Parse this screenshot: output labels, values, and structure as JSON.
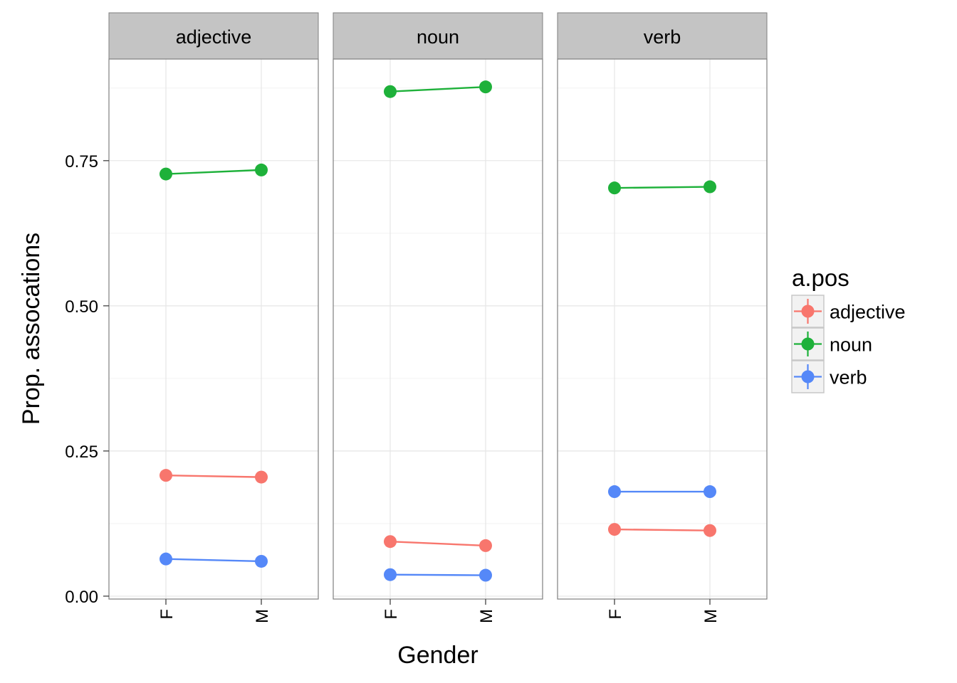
{
  "chart_data": {
    "type": "line",
    "facets": [
      "adjective",
      "noun",
      "verb"
    ],
    "x": [
      "F",
      "M"
    ],
    "xlabel": "Gender",
    "ylabel": "Prop. assocations",
    "ylim": [
      -0.005,
      0.925
    ],
    "yticks": [
      0.0,
      0.25,
      0.5,
      0.75
    ],
    "ytick_labels": [
      "0.00",
      "0.25",
      "0.50",
      "0.75"
    ],
    "grid": true,
    "legend": {
      "title": "a.pos",
      "position": "right",
      "entries": [
        "adjective",
        "noun",
        "verb"
      ]
    },
    "series": [
      {
        "name": "adjective",
        "color": "#F8766D",
        "panels": {
          "adjective": [
            0.208,
            0.205
          ],
          "noun": [
            0.094,
            0.087
          ],
          "verb": [
            0.115,
            0.113
          ]
        }
      },
      {
        "name": "noun",
        "color": "#1EB13A",
        "panels": {
          "adjective": [
            0.727,
            0.734
          ],
          "noun": [
            0.869,
            0.877
          ],
          "verb": [
            0.703,
            0.705
          ]
        }
      },
      {
        "name": "verb",
        "color": "#5588F8",
        "panels": {
          "adjective": [
            0.064,
            0.06
          ],
          "noun": [
            0.037,
            0.036
          ],
          "verb": [
            0.18,
            0.18
          ]
        }
      }
    ]
  }
}
